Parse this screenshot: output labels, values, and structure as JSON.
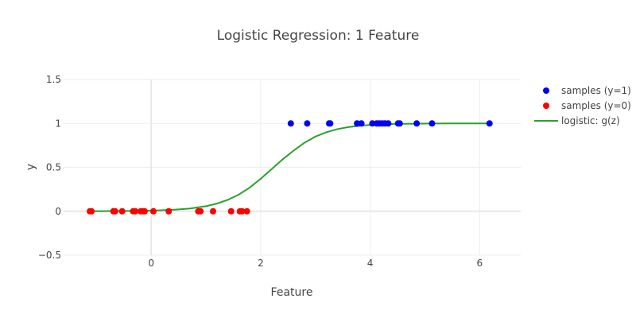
{
  "chart_data": {
    "type": "scatter",
    "title": "Logistic Regression: 1 Feature",
    "xlabel": "Feature",
    "ylabel": "y",
    "xlim": [
      -1.6,
      6.75
    ],
    "ylim": [
      -0.5,
      1.5
    ],
    "x_ticks": [
      0,
      2,
      4,
      6
    ],
    "y_ticks": [
      -0.5,
      0,
      0.5,
      1,
      1.5
    ],
    "x_tick_labels": [
      "0",
      "2",
      "4",
      "6"
    ],
    "y_tick_labels": [
      "−0.5",
      "0",
      "0.5",
      "1",
      "1.5"
    ],
    "grid": true,
    "legend_position": "right",
    "series": [
      {
        "name": "samples (y=1)",
        "type": "scatter",
        "color": "#0000ff",
        "x": [
          2.55,
          2.85,
          3.25,
          3.27,
          3.76,
          3.84,
          4.04,
          4.12,
          4.17,
          4.22,
          4.27,
          4.33,
          4.51,
          4.54,
          4.85,
          5.13,
          6.18
        ],
        "y": [
          1,
          1,
          1,
          1,
          1,
          1,
          1,
          1,
          1,
          1,
          1,
          1,
          1,
          1,
          1,
          1,
          1
        ]
      },
      {
        "name": "samples (y=0)",
        "type": "scatter",
        "color": "#ff0000",
        "x": [
          -1.12,
          -1.09,
          -0.69,
          -0.66,
          -0.53,
          -0.33,
          -0.29,
          -0.19,
          -0.14,
          -0.12,
          0.04,
          0.32,
          0.86,
          0.9,
          1.13,
          1.46,
          1.62,
          1.66,
          1.75
        ],
        "y": [
          0,
          0,
          0,
          0,
          0,
          0,
          0,
          0,
          0,
          0,
          0,
          0,
          0,
          0,
          0,
          0,
          0,
          0,
          0
        ]
      },
      {
        "name": "logistic: g(z)",
        "type": "line",
        "color": "#2ca02c",
        "x": [
          -1.12,
          -0.8,
          -0.5,
          -0.2,
          0.1,
          0.4,
          0.7,
          1.0,
          1.2,
          1.4,
          1.6,
          1.8,
          2.0,
          2.2,
          2.4,
          2.6,
          2.8,
          3.0,
          3.2,
          3.4,
          3.6,
          3.8,
          4.0,
          4.2,
          4.5,
          4.8,
          5.1,
          5.5,
          5.9,
          6.18
        ],
        "y": [
          0.001,
          0.002,
          0.003,
          0.005,
          0.009,
          0.017,
          0.031,
          0.058,
          0.087,
          0.13,
          0.19,
          0.27,
          0.37,
          0.48,
          0.59,
          0.69,
          0.78,
          0.85,
          0.9,
          0.935,
          0.958,
          0.973,
          0.983,
          0.99,
          0.995,
          0.997,
          0.999,
          0.9995,
          0.9998,
          1.0
        ]
      }
    ]
  }
}
